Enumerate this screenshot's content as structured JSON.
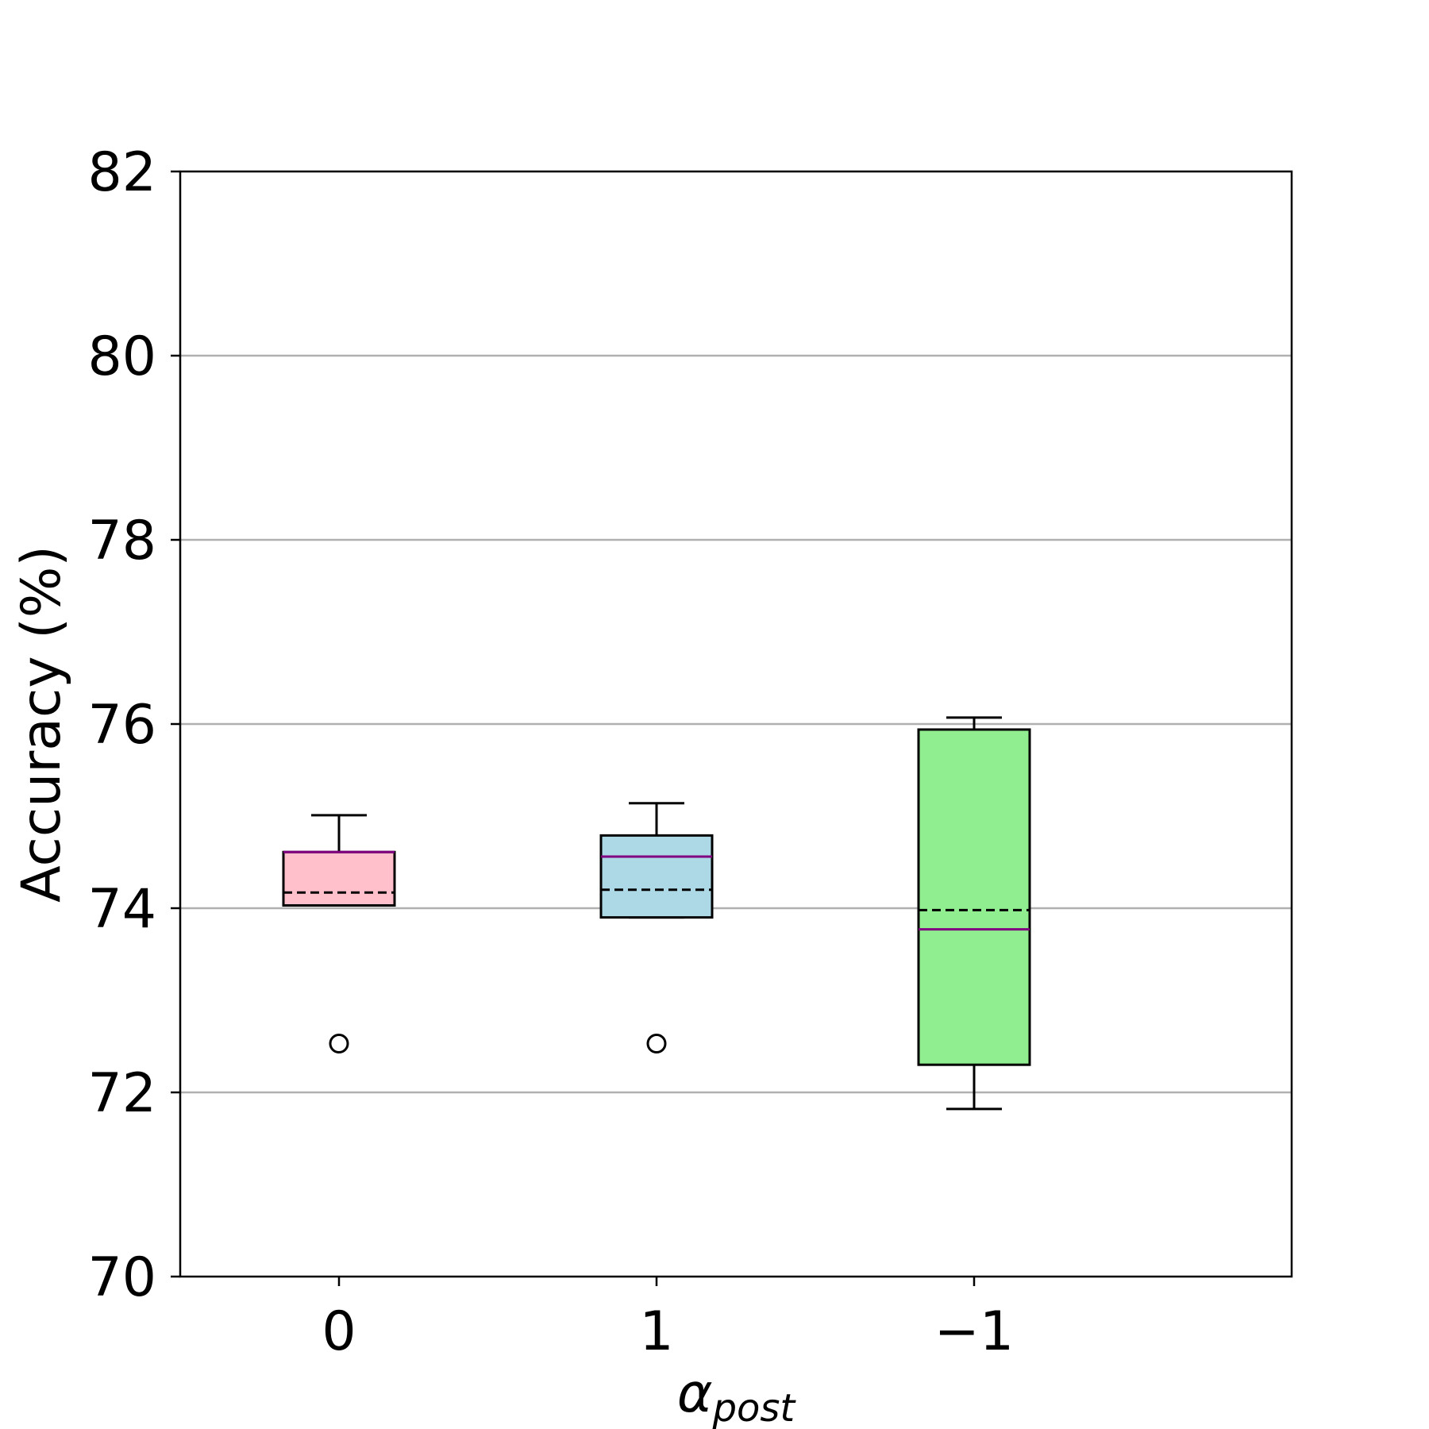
{
  "chart_data": {
    "type": "box",
    "categories": [
      "0",
      "1",
      "−1"
    ],
    "xlabel": {
      "base": "α",
      "subscript": "post"
    },
    "ylabel": "Accuracy (%)",
    "ylim": [
      70,
      82
    ],
    "yticks": [
      "70",
      "72",
      "74",
      "76",
      "78",
      "80",
      "82"
    ],
    "grid": "y",
    "boxes": [
      {
        "category": "0",
        "fill": "#ffc0cb",
        "whisker_low": 74.03,
        "q1": 74.03,
        "median": 74.61,
        "mean": 74.17,
        "q3": 74.61,
        "whisker_high": 75.01,
        "outliers": [
          72.53
        ]
      },
      {
        "category": "1",
        "fill": "#add8e6",
        "whisker_low": 73.9,
        "q1": 73.9,
        "median": 74.56,
        "mean": 74.2,
        "q3": 74.79,
        "whisker_high": 75.14,
        "outliers": [
          72.53
        ]
      },
      {
        "category": "−1",
        "fill": "#90ee90",
        "whisker_low": 71.82,
        "q1": 72.3,
        "median": 73.77,
        "mean": 73.98,
        "q3": 75.94,
        "whisker_high": 76.07,
        "outliers": []
      }
    ],
    "colors": {
      "median": "#800080",
      "mean": "#000000",
      "grid": "#b0b0b0",
      "frame": "#000000"
    }
  }
}
